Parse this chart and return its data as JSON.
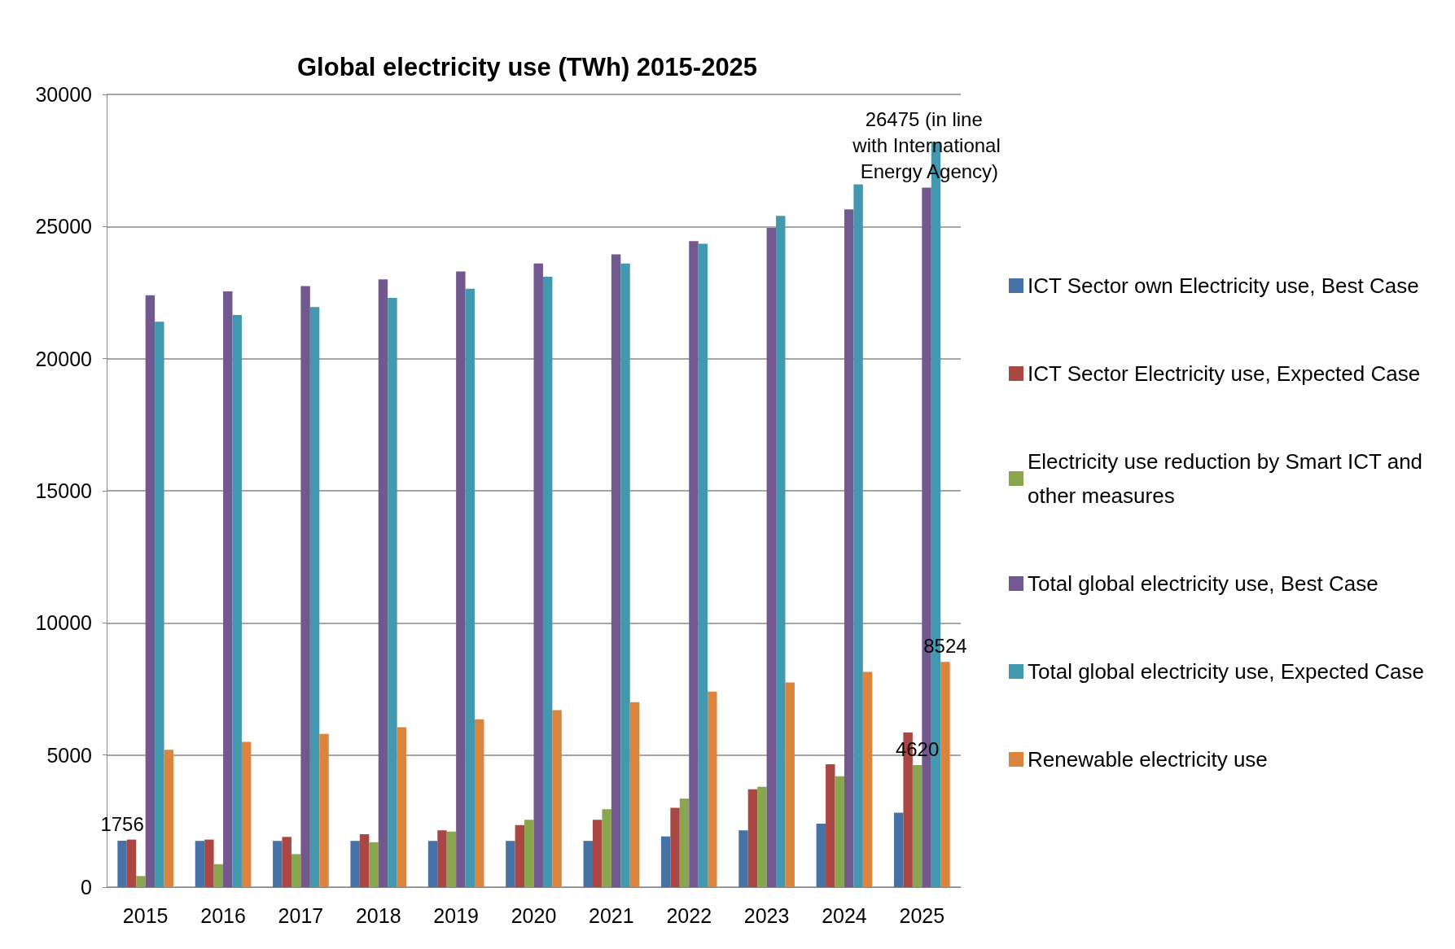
{
  "chart_data": {
    "type": "bar",
    "title": "Global electricity use (TWh) 2015-2025",
    "categories": [
      "2015",
      "2016",
      "2017",
      "2018",
      "2019",
      "2020",
      "2021",
      "2022",
      "2023",
      "2024",
      "2025"
    ],
    "series": [
      {
        "name": "ICT Sector own Electricity use, Best Case",
        "color": "#4572a7",
        "values": [
          1756,
          1750,
          1750,
          1750,
          1750,
          1750,
          1750,
          1920,
          2150,
          2400,
          2820
        ],
        "value_labels": [
          "1756",
          null,
          null,
          null,
          null,
          null,
          null,
          null,
          null,
          null,
          null
        ]
      },
      {
        "name": "ICT Sector Electricity use, Expected Case",
        "color": "#aa4643",
        "values": [
          1800,
          1800,
          1900,
          2000,
          2150,
          2350,
          2550,
          3000,
          3700,
          4650,
          5850
        ]
      },
      {
        "name": "Electricity use reduction by Smart ICT and other measures",
        "color": "#89a54e",
        "values": [
          420,
          870,
          1250,
          1700,
          2100,
          2550,
          2950,
          3350,
          3800,
          4200,
          4620
        ],
        "value_labels": [
          null,
          null,
          null,
          null,
          null,
          null,
          null,
          null,
          null,
          null,
          "4620"
        ]
      },
      {
        "name": "Total global electricity use, Best Case",
        "color": "#71588f",
        "values": [
          22400,
          22550,
          22750,
          23000,
          23300,
          23600,
          23950,
          24450,
          24950,
          25650,
          26475
        ],
        "value_labels": [
          null,
          null,
          null,
          null,
          null,
          null,
          null,
          null,
          null,
          null,
          "26475 (in line with International Energy Agency)"
        ]
      },
      {
        "name": "Total global electricity use, Expected Case",
        "color": "#4198af",
        "values": [
          21400,
          21650,
          21950,
          22300,
          22650,
          23100,
          23600,
          24350,
          25400,
          26600,
          28200
        ]
      },
      {
        "name": "Renewable electricity use",
        "color": "#db843d",
        "values": [
          5200,
          5500,
          5800,
          6050,
          6350,
          6700,
          7000,
          7400,
          7750,
          8150,
          8524
        ],
        "value_labels": [
          null,
          null,
          null,
          null,
          null,
          null,
          null,
          null,
          null,
          null,
          "8524"
        ]
      }
    ],
    "ylim": [
      0,
      30000
    ],
    "yticks": [
      0,
      5000,
      10000,
      15000,
      20000,
      25000,
      30000
    ],
    "grid": "y",
    "legend": "right"
  }
}
